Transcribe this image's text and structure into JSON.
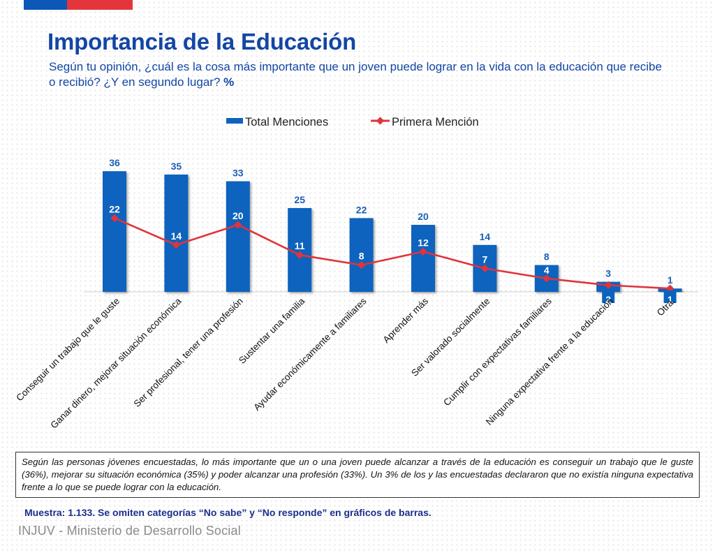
{
  "header": {
    "title": "Importancia de la Educación",
    "subtitle": "Según tu opinión, ¿cuál es la cosa más importante que un joven puede lograr en la vida con la educación que recibe o recibió? ¿Y en segundo lugar?",
    "subtitle_unit": "%"
  },
  "colors": {
    "bar": "#0b63bd",
    "line": "#e0343b",
    "label_blue": "#1a5fb4",
    "stripe_blue": "#0b58b7",
    "stripe_red": "#e4353c"
  },
  "chart_data": {
    "type": "bar",
    "categories": [
      "Conseguir un trabajo que le guste",
      "Ganar dinero, mejorar situación económica",
      "Ser profesional, tener una profesión",
      "Sustentar una familia",
      "Ayudar económicamente a familiares",
      "Aprender más",
      "Ser valorado socialmente",
      "Cumplir con expectativas familiares",
      "Ninguna expectativa frente a la educación",
      "Otra."
    ],
    "series": [
      {
        "name": "Total Menciones",
        "type": "bar",
        "values": [
          36,
          35,
          33,
          25,
          22,
          20,
          14,
          8,
          3,
          1
        ]
      },
      {
        "name": "Primera Mención",
        "type": "line",
        "values": [
          22,
          14,
          20,
          11,
          8,
          12,
          7,
          4,
          2,
          1
        ]
      }
    ],
    "ylim": [
      0,
      40
    ],
    "grid": false,
    "legend_position": "top-center"
  },
  "summary": "Según las personas jóvenes encuestadas, lo más importante que un o una joven puede alcanzar a través de la educación es conseguir un trabajo que le guste (36%), mejorar su situación económica (35%) y poder alcanzar una profesión (33%). Un 3% de los y las encuestadas declararon que no existía ninguna expectativa frente a lo que se puede lograr con la educación.",
  "sample_note": "Muestra: 1.133. Se omiten categorías “No sabe” y “No responde” en gráficos de barras.",
  "footer": "INJUV - Ministerio de Desarrollo Social"
}
